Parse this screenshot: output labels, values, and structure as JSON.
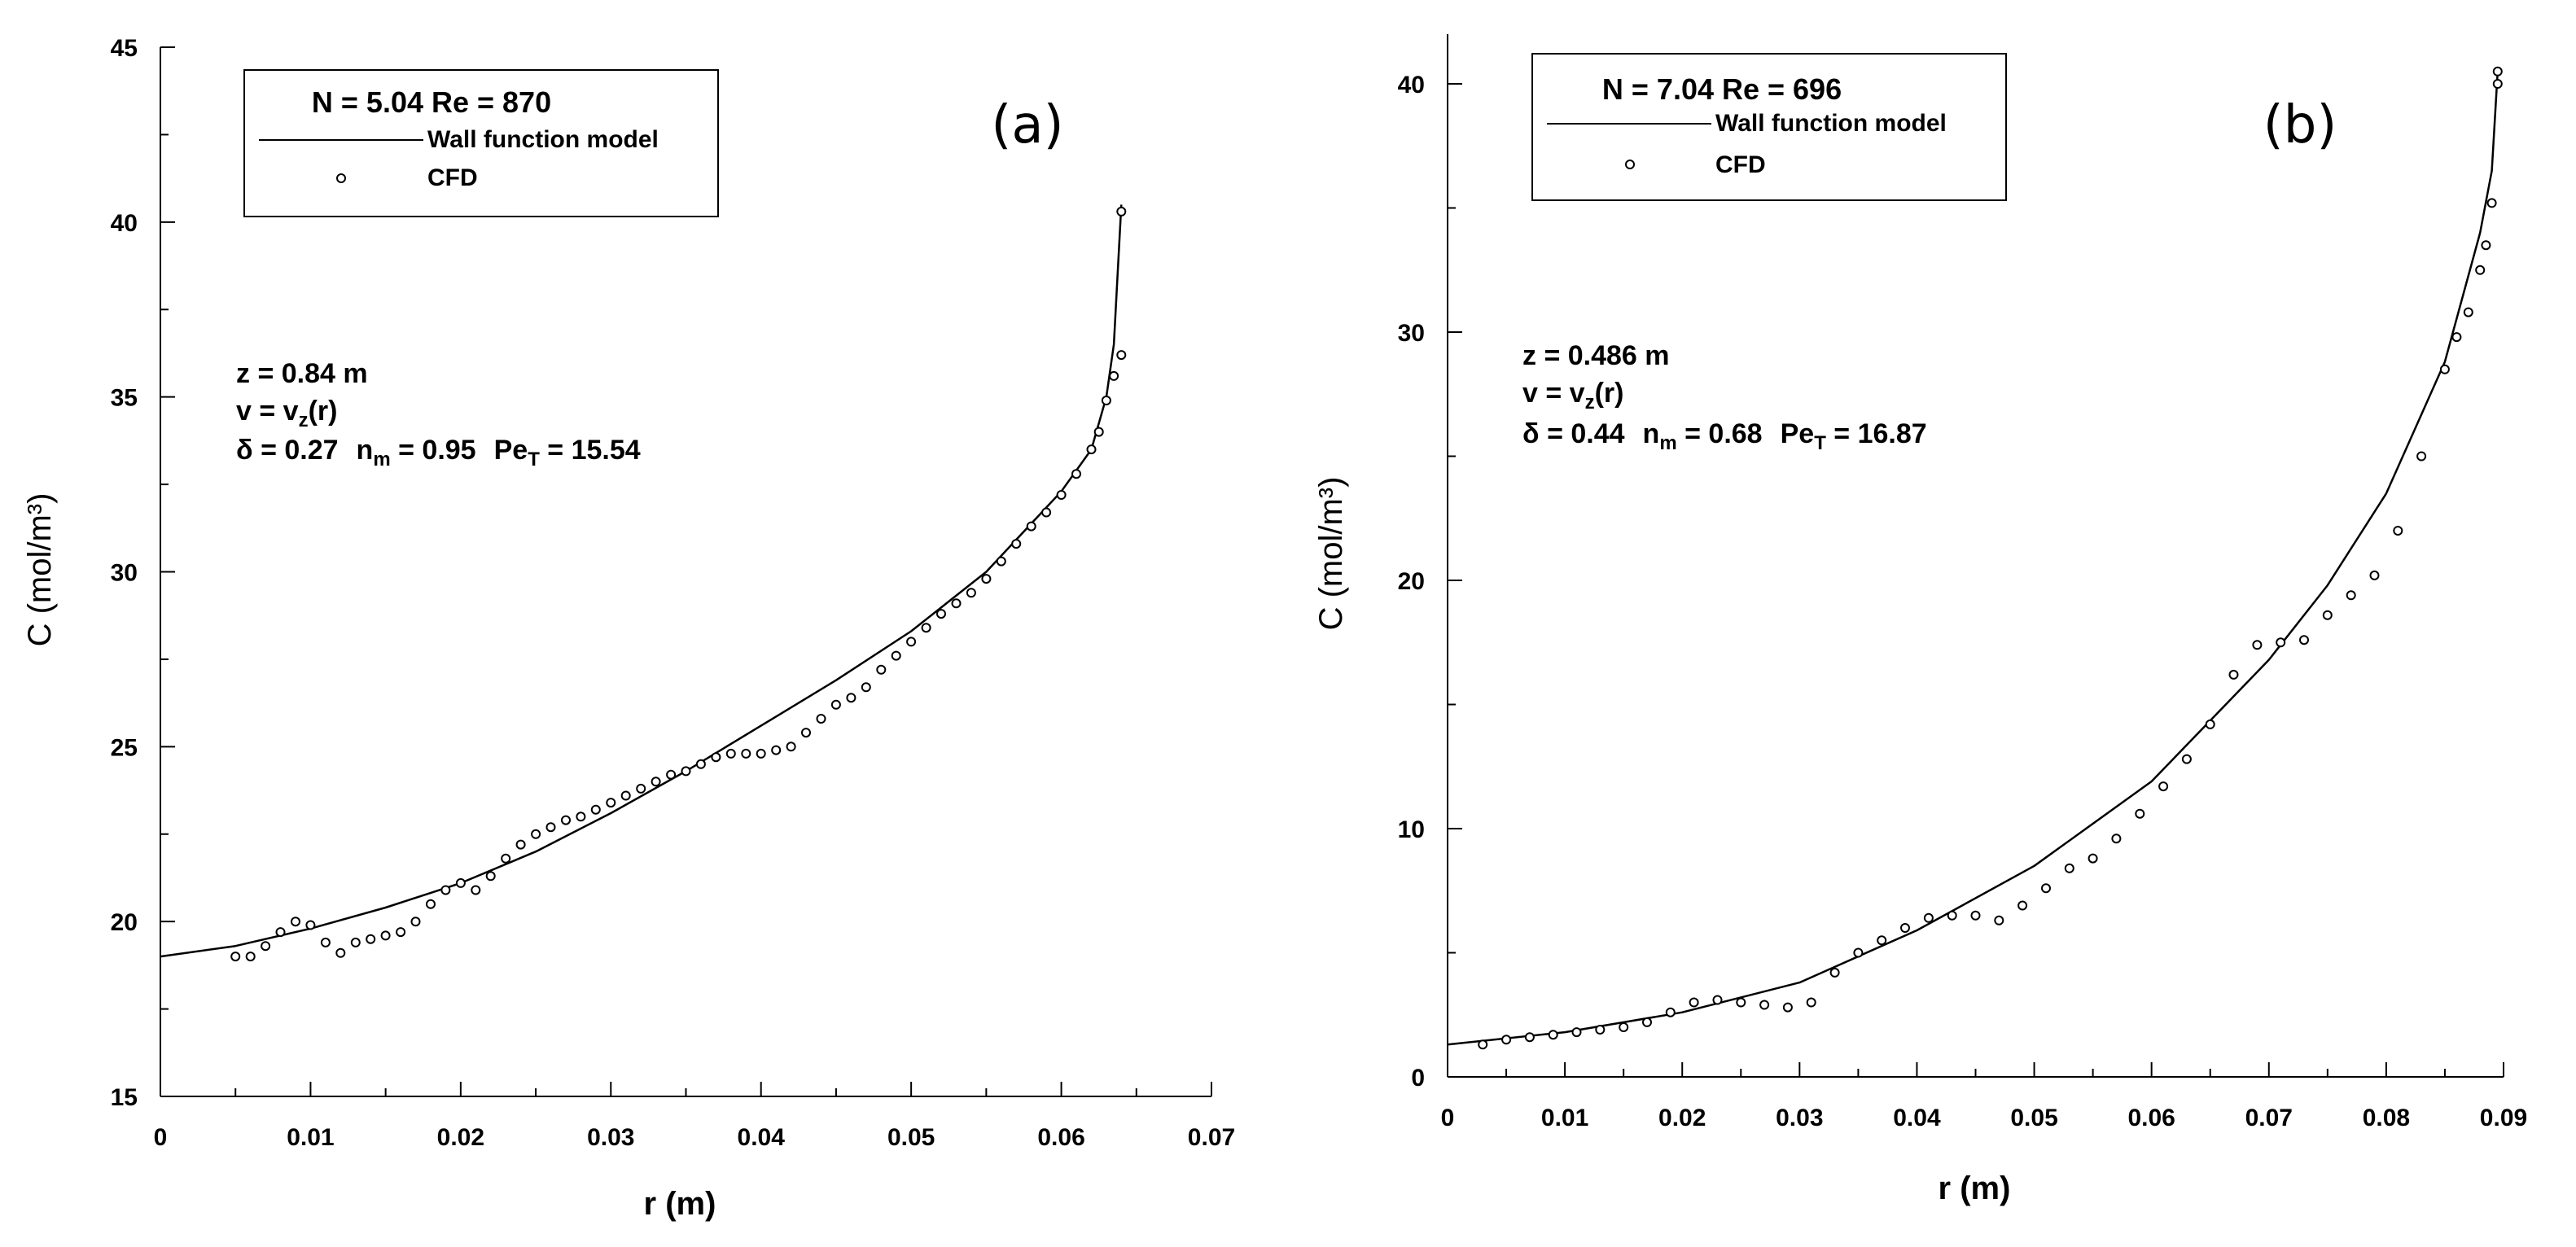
{
  "chart_data": [
    {
      "type": "line",
      "panel": "(a)",
      "xlabel": "r (m)",
      "ylabel": "C (mol/m³)",
      "xlim": [
        0,
        0.07
      ],
      "ylim": [
        15,
        45
      ],
      "xticks": [
        "0",
        "0.01",
        "0.02",
        "0.03",
        "0.04",
        "0.05",
        "0.06",
        "0.07"
      ],
      "yticks": [
        "15",
        "20",
        "25",
        "30",
        "35",
        "40",
        "45"
      ],
      "legend": {
        "header": "N = 5.04  Re = 870",
        "entries": [
          "Wall function model",
          "CFD"
        ]
      },
      "annotations": {
        "z": "z = 0.84 m",
        "v_lhs": "v = v",
        "v_sub": "z",
        "v_rhs": "(r)",
        "delta": "δ = 0.27",
        "nm_lhs": "n",
        "nm_sub": "m",
        "nm_rhs": " = 0.95",
        "pe_lhs": "Pe",
        "pe_sub": "T",
        "pe_rhs": " = 15.54"
      },
      "series": [
        {
          "name": "Wall function model",
          "style": "line",
          "x": [
            0,
            0.005,
            0.01,
            0.015,
            0.02,
            0.025,
            0.03,
            0.035,
            0.04,
            0.045,
            0.05,
            0.055,
            0.06,
            0.062,
            0.063,
            0.0635,
            0.064
          ],
          "y": [
            19.0,
            19.3,
            19.8,
            20.4,
            21.1,
            22.0,
            23.1,
            24.3,
            25.6,
            26.9,
            28.3,
            30.0,
            32.3,
            33.5,
            35.0,
            36.5,
            40.5
          ]
        },
        {
          "name": "CFD",
          "style": "markers",
          "x": [
            0.005,
            0.006,
            0.007,
            0.008,
            0.009,
            0.01,
            0.011,
            0.012,
            0.013,
            0.014,
            0.015,
            0.016,
            0.017,
            0.018,
            0.019,
            0.02,
            0.021,
            0.022,
            0.023,
            0.024,
            0.025,
            0.026,
            0.027,
            0.028,
            0.029,
            0.03,
            0.031,
            0.032,
            0.033,
            0.034,
            0.035,
            0.036,
            0.037,
            0.038,
            0.039,
            0.04,
            0.041,
            0.042,
            0.043,
            0.044,
            0.045,
            0.046,
            0.047,
            0.048,
            0.049,
            0.05,
            0.051,
            0.052,
            0.053,
            0.054,
            0.055,
            0.056,
            0.057,
            0.058,
            0.059,
            0.06,
            0.061,
            0.062,
            0.0625,
            0.063,
            0.0635,
            0.064,
            0.064
          ],
          "y": [
            19.0,
            19.0,
            19.3,
            19.7,
            20.0,
            19.9,
            19.4,
            19.1,
            19.4,
            19.5,
            19.6,
            19.7,
            20.0,
            20.5,
            20.9,
            21.1,
            20.9,
            21.3,
            21.8,
            22.2,
            22.5,
            22.7,
            22.9,
            23.0,
            23.2,
            23.4,
            23.6,
            23.8,
            24.0,
            24.2,
            24.3,
            24.5,
            24.7,
            24.8,
            24.8,
            24.8,
            24.9,
            25.0,
            25.4,
            25.8,
            26.2,
            26.4,
            26.7,
            27.2,
            27.6,
            28.0,
            28.4,
            28.8,
            29.1,
            29.4,
            29.8,
            30.3,
            30.8,
            31.3,
            31.7,
            32.2,
            32.8,
            33.5,
            34.0,
            34.9,
            35.6,
            36.2,
            40.3
          ]
        }
      ]
    },
    {
      "type": "line",
      "panel": "(b)",
      "xlabel": "r (m)",
      "ylabel": "C (mol/m³)",
      "xlim": [
        0,
        0.09
      ],
      "ylim": [
        0,
        42
      ],
      "xticks": [
        "0",
        "0.01",
        "0.02",
        "0.03",
        "0.04",
        "0.05",
        "0.06",
        "0.07",
        "0.08",
        "0.09"
      ],
      "yticks": [
        "0",
        "10",
        "20",
        "30",
        "40"
      ],
      "legend": {
        "header": "N = 7.04  Re = 696",
        "entries": [
          "Wall function model",
          "CFD"
        ]
      },
      "annotations": {
        "z": "z = 0.486 m",
        "v_lhs": "v = v",
        "v_sub": "z",
        "v_rhs": "(r)",
        "delta": "δ = 0.44",
        "nm_lhs": "n",
        "nm_sub": "m",
        "nm_rhs": " = 0.68",
        "pe_lhs": "Pe",
        "pe_sub": "T",
        "pe_rhs": " = 16.87"
      },
      "series": [
        {
          "name": "Wall function model",
          "style": "line",
          "x": [
            0,
            0.01,
            0.02,
            0.03,
            0.04,
            0.05,
            0.06,
            0.07,
            0.075,
            0.08,
            0.085,
            0.088,
            0.089,
            0.0895
          ],
          "y": [
            1.3,
            1.8,
            2.6,
            3.8,
            5.9,
            8.5,
            11.9,
            16.8,
            19.8,
            23.5,
            28.8,
            34.0,
            36.5,
            40.5
          ]
        },
        {
          "name": "CFD",
          "style": "markers",
          "x": [
            0.003,
            0.005,
            0.007,
            0.009,
            0.011,
            0.013,
            0.015,
            0.017,
            0.019,
            0.021,
            0.023,
            0.025,
            0.027,
            0.029,
            0.031,
            0.033,
            0.035,
            0.037,
            0.039,
            0.041,
            0.043,
            0.045,
            0.047,
            0.049,
            0.051,
            0.053,
            0.055,
            0.057,
            0.059,
            0.061,
            0.063,
            0.065,
            0.067,
            0.069,
            0.071,
            0.073,
            0.075,
            0.077,
            0.079,
            0.081,
            0.083,
            0.085,
            0.086,
            0.087,
            0.088,
            0.0885,
            0.089,
            0.0895,
            0.0895
          ],
          "y": [
            1.3,
            1.5,
            1.6,
            1.7,
            1.8,
            1.9,
            2.0,
            2.2,
            2.6,
            3.0,
            3.1,
            3.0,
            2.9,
            2.8,
            3.0,
            4.2,
            5.0,
            5.5,
            6.0,
            6.4,
            6.5,
            6.5,
            6.3,
            6.9,
            7.6,
            8.4,
            8.8,
            9.6,
            10.6,
            11.7,
            12.8,
            14.2,
            16.2,
            17.4,
            17.5,
            17.6,
            18.6,
            19.4,
            20.2,
            22.0,
            25.0,
            28.5,
            29.8,
            30.8,
            32.5,
            33.5,
            35.2,
            40.0,
            40.5
          ]
        }
      ]
    }
  ]
}
